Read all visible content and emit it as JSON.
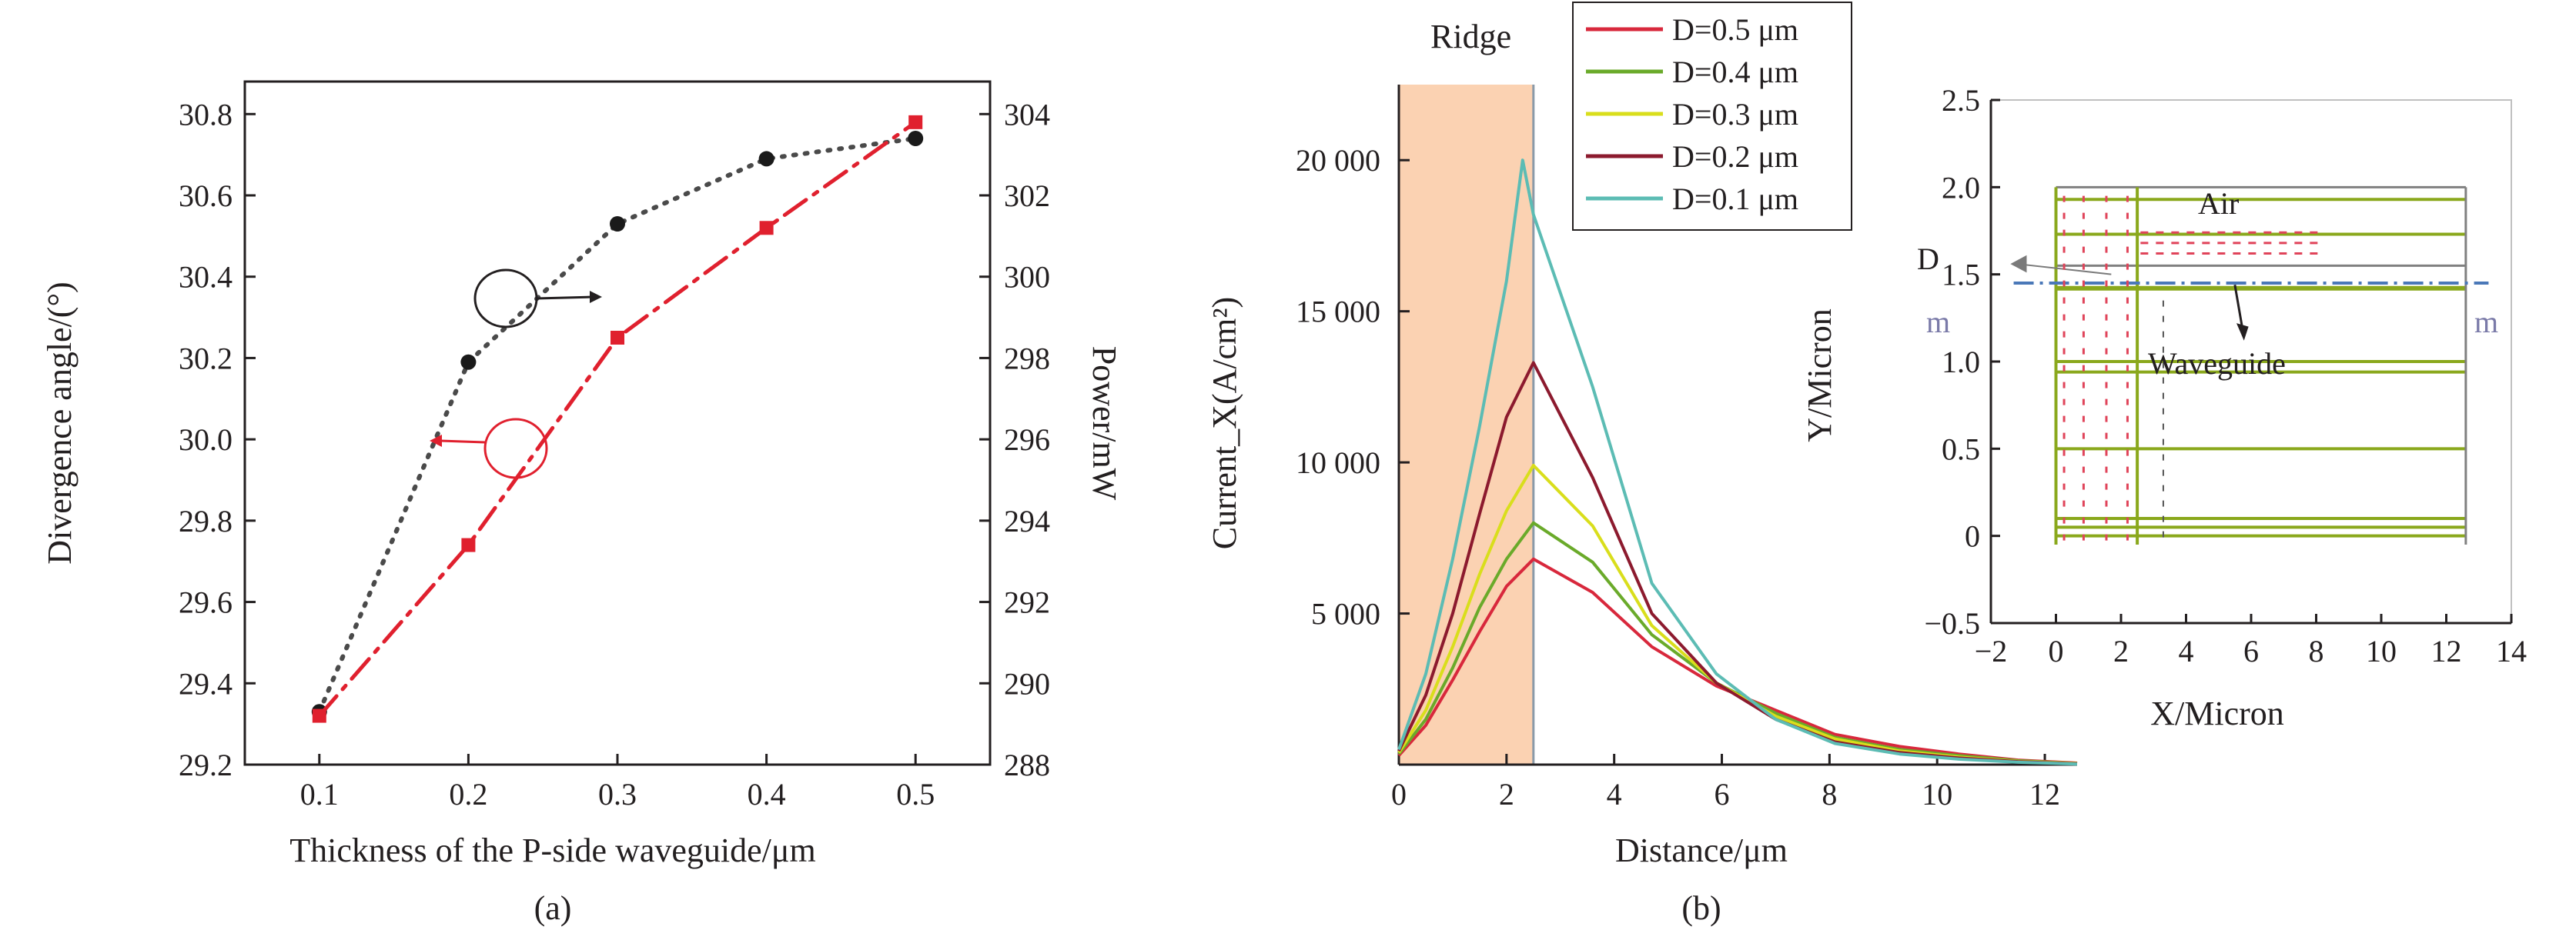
{
  "chart_data": [
    {
      "panel": "(a)",
      "type": "scatter",
      "xlabel": "Thickness of the P-side waveguide/μm",
      "ylabel_left": "Divergence angle/(°)",
      "ylabel_right": "Power/mW",
      "xticks": [
        "0.1",
        "0.2",
        "0.3",
        "0.4",
        "0.5"
      ],
      "yticks_left": [
        "29.2",
        "29.4",
        "29.6",
        "29.8",
        "30.0",
        "30.2",
        "30.4",
        "30.6",
        "30.8"
      ],
      "yticks_right": [
        "288",
        "290",
        "292",
        "294",
        "296",
        "298",
        "300",
        "302",
        "304"
      ],
      "xlim": [
        0.05,
        0.55
      ],
      "ylim_left": [
        29.2,
        30.88
      ],
      "ylim_right": [
        288,
        304.8
      ],
      "series": [
        {
          "axis": "left",
          "marker": "circle",
          "line": "dotted",
          "color": "#4a4a4a",
          "points": [
            [
              0.1,
              29.33
            ],
            [
              0.2,
              30.19
            ],
            [
              0.3,
              30.53
            ],
            [
              0.4,
              30.69
            ],
            [
              0.5,
              30.74
            ]
          ]
        },
        {
          "axis": "right",
          "marker": "square",
          "line": "dash-dot",
          "color": "#e0202e",
          "points": [
            [
              0.1,
              289.2
            ],
            [
              0.2,
              293.4
            ],
            [
              0.3,
              298.5
            ],
            [
              0.4,
              301.2
            ],
            [
              0.5,
              303.8
            ]
          ]
        }
      ]
    },
    {
      "panel": "(b)",
      "type": "line",
      "xlabel": "Distance/μm",
      "ylabel": "Current_X(A/cm²)",
      "xticks": [
        "0",
        "2",
        "4",
        "6",
        "8",
        "10",
        "12"
      ],
      "yticks": [
        "5 000",
        "10 000",
        "15 000",
        "20 000"
      ],
      "xlim": [
        0,
        12.6
      ],
      "ylim": [
        0,
        22500
      ],
      "ridge_label": "Ridge",
      "ridge_range": [
        0,
        2.5
      ],
      "legend_position": "top",
      "series": [
        {
          "legend": "D=0.5 μm",
          "color": "#d8283c",
          "x": [
            0,
            0.5,
            1.0,
            1.5,
            2.0,
            2.5,
            3.6,
            4.7,
            5.9,
            7.0,
            8.1,
            9.3,
            10.4,
            11.5,
            12.6
          ],
          "y": [
            300,
            1300,
            2800,
            4400,
            5900,
            6800,
            5700,
            3900,
            2600,
            1800,
            1000,
            600,
            350,
            150,
            50
          ]
        },
        {
          "legend": "D=0.4 μm",
          "color": "#6aaa2a",
          "x": [
            0,
            0.5,
            1.0,
            1.5,
            2.0,
            2.5,
            3.6,
            4.7,
            5.9,
            7.0,
            8.1,
            9.3,
            10.4,
            11.5,
            12.6
          ],
          "y": [
            350,
            1500,
            3200,
            5200,
            6800,
            8000,
            6700,
            4300,
            2700,
            1700,
            900,
            500,
            300,
            130,
            40
          ]
        },
        {
          "legend": "D=0.3 μm",
          "color": "#d9de1c",
          "x": [
            0,
            0.5,
            1.0,
            1.5,
            2.0,
            2.5,
            3.6,
            4.7,
            5.9,
            7.0,
            8.1,
            9.3,
            10.4,
            11.5,
            12.6
          ],
          "y": [
            400,
            1800,
            3900,
            6300,
            8400,
            9900,
            7900,
            4600,
            2700,
            1600,
            850,
            450,
            250,
            110,
            40
          ]
        },
        {
          "legend": "D=0.2 μm",
          "color": "#8c1a2e",
          "x": [
            0,
            0.5,
            1.0,
            1.5,
            2.0,
            2.5,
            3.6,
            4.7,
            5.9,
            7.0,
            8.1,
            9.3,
            10.4,
            11.5,
            12.6
          ],
          "y": [
            450,
            2300,
            5000,
            8300,
            11500,
            13300,
            9500,
            5000,
            2700,
            1500,
            750,
            400,
            220,
            100,
            30
          ]
        },
        {
          "legend": "D=0.1 μm",
          "color": "#5cbcb4",
          "x": [
            0,
            0.5,
            1.0,
            1.5,
            2.0,
            2.3,
            2.5,
            3.6,
            4.7,
            5.9,
            7.0,
            8.1,
            9.3,
            10.4,
            11.5,
            12.6
          ],
          "y": [
            500,
            3000,
            6800,
            11200,
            16000,
            20000,
            18200,
            12500,
            6000,
            3000,
            1500,
            700,
            350,
            180,
            80,
            20
          ]
        }
      ],
      "inset": {
        "xlabel": "X/Micron",
        "ylabel": "Y/Micron",
        "xticks": [
          "−2",
          "0",
          "2",
          "4",
          "6",
          "8",
          "10",
          "12",
          "14"
        ],
        "yticks": [
          "−0.5",
          "0",
          "0.5",
          "1.0",
          "1.5",
          "2.0",
          "2.5"
        ],
        "xlim": [
          -2,
          14
        ],
        "ylim": [
          -0.5,
          2.5
        ],
        "labels": {
          "air": "Air",
          "waveguide": "Waveguide",
          "d": "D",
          "m_left": "m",
          "m_right": "m"
        },
        "colors": {
          "layer": "#8aa81c",
          "frame": "#808080",
          "waveguide_line": "#4a78b8",
          "vector": "#e0445a"
        }
      }
    }
  ]
}
